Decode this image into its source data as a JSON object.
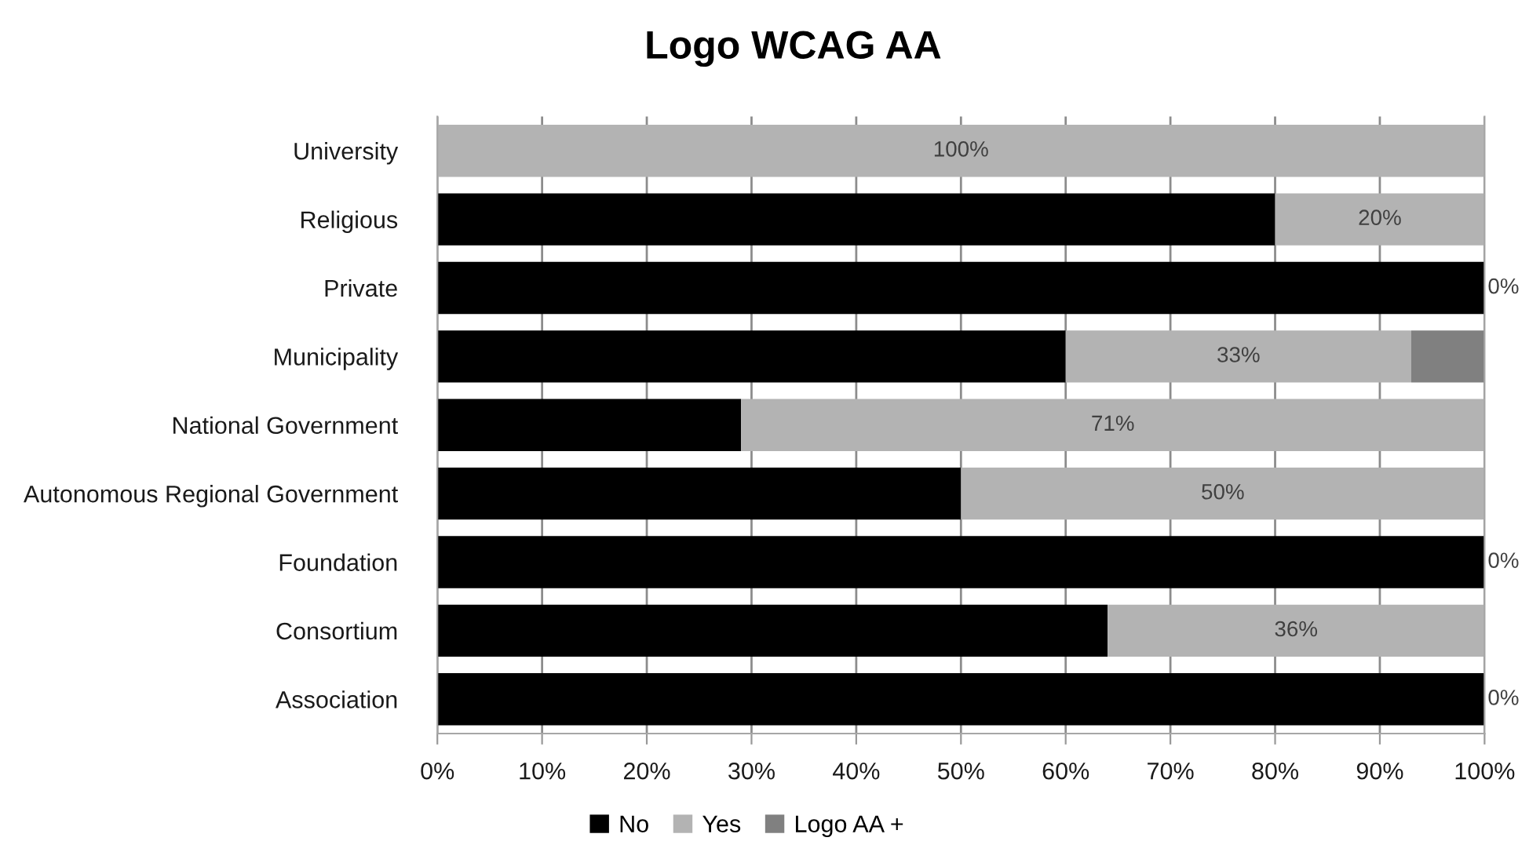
{
  "chart_data": {
    "type": "bar",
    "orientation": "horizontal",
    "stacked": true,
    "title": "Logo WCAG AA",
    "categories": [
      "University",
      "Religious",
      "Private",
      "Municipality",
      "National Government",
      "Autonomous Regional Government",
      "Foundation",
      "Consortium",
      "Association"
    ],
    "series": [
      {
        "name": "No",
        "color": "#000000",
        "values": [
          0,
          80,
          100,
          60,
          29,
          50,
          100,
          64,
          100
        ]
      },
      {
        "name": "Yes",
        "color": "#b3b3b3",
        "values": [
          100,
          20,
          0,
          33,
          71,
          50,
          0,
          36,
          0
        ],
        "value_labels": [
          "100%",
          "20%",
          "0%",
          "33%",
          "71%",
          "50%",
          "0%",
          "36%",
          "0%"
        ]
      },
      {
        "name": "Logo AA +",
        "color": "#808080",
        "values": [
          0,
          0,
          0,
          7,
          0,
          0,
          0,
          0,
          0
        ]
      }
    ],
    "xlim": [
      0,
      100
    ],
    "xticks": [
      {
        "value": 0,
        "label": "0%"
      },
      {
        "value": 10,
        "label": "10%"
      },
      {
        "value": 20,
        "label": "20%"
      },
      {
        "value": 30,
        "label": "30%"
      },
      {
        "value": 40,
        "label": "40%"
      },
      {
        "value": 50,
        "label": "50%"
      },
      {
        "value": 60,
        "label": "60%"
      },
      {
        "value": 70,
        "label": "70%"
      },
      {
        "value": 80,
        "label": "80%"
      },
      {
        "value": 90,
        "label": "90%"
      },
      {
        "value": 100,
        "label": "100%"
      }
    ],
    "grid": "x",
    "legend": "bottom"
  }
}
